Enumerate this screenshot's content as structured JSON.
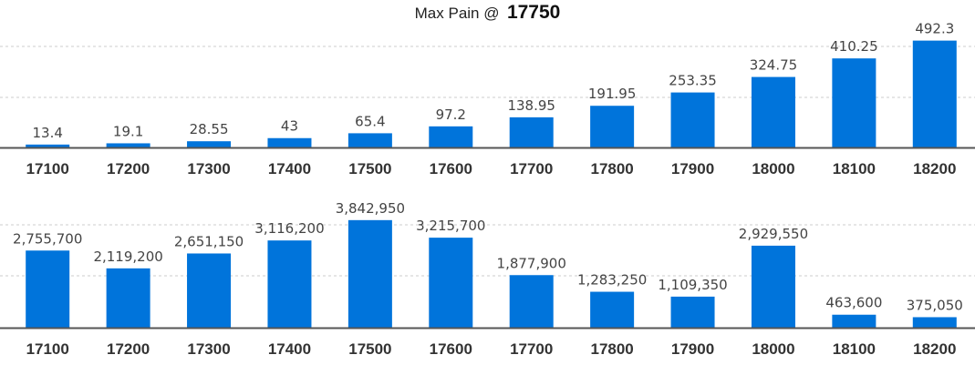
{
  "title": {
    "label": "Max Pain @",
    "value": "17750"
  },
  "colors": {
    "bar": "#0074db",
    "axis": "#555555",
    "grid": "#cccccc"
  },
  "chart_data": [
    {
      "type": "bar",
      "categories": [
        "17100",
        "17200",
        "17300",
        "17400",
        "17500",
        "17600",
        "17700",
        "17800",
        "17900",
        "18000",
        "18100",
        "18200"
      ],
      "values": [
        13.4,
        19.1,
        28.55,
        43,
        65.4,
        97.2,
        138.95,
        191.95,
        253.35,
        324.75,
        410.25,
        492.3
      ],
      "data_labels": [
        "13.4",
        "19.1",
        "28.55",
        "43",
        "65.4",
        "97.2",
        "138.95",
        "191.95",
        "253.35",
        "324.75",
        "410.25",
        "492.3"
      ],
      "ylim": [
        0,
        520
      ],
      "grid": true
    },
    {
      "type": "bar",
      "categories": [
        "17100",
        "17200",
        "17300",
        "17400",
        "17500",
        "17600",
        "17700",
        "17800",
        "17900",
        "18000",
        "18100",
        "18200"
      ],
      "values": [
        2755700,
        2119200,
        2651150,
        3116200,
        3842950,
        3215700,
        1877900,
        1283250,
        1109350,
        2929550,
        463600,
        375050
      ],
      "data_labels": [
        "2,755,700",
        "2,119,200",
        "2,651,150",
        "3,116,200",
        "3,842,950",
        "3,215,700",
        "1,877,900",
        "1,283,250",
        "1,109,350",
        "2,929,550",
        "463,600",
        "375,050"
      ],
      "ylim": [
        0,
        4000000
      ],
      "grid": true
    }
  ]
}
